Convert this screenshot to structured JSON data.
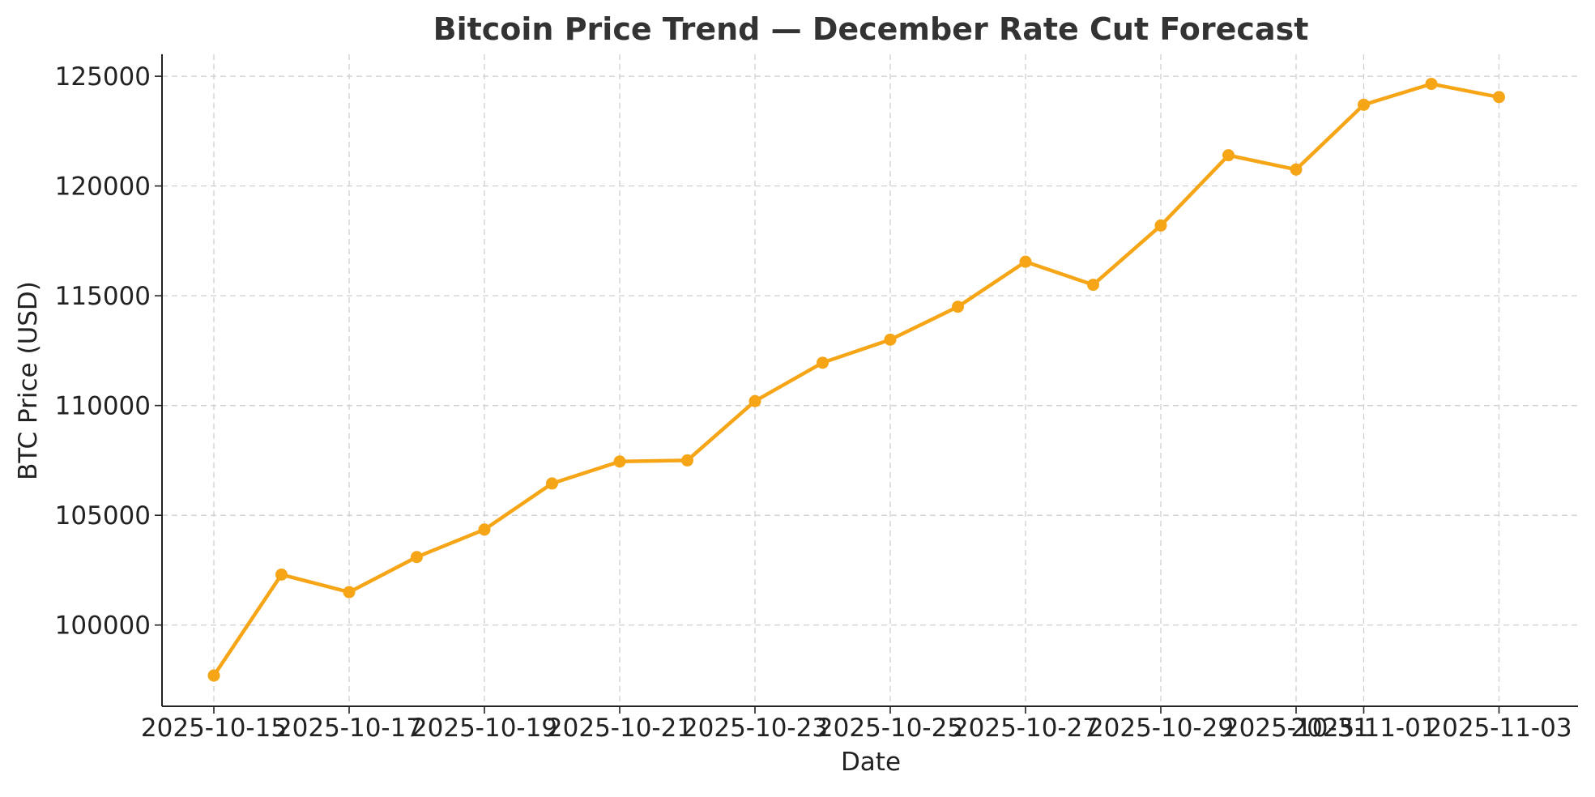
{
  "chart_data": {
    "type": "line",
    "title": "Bitcoin Price Trend — December Rate Cut Forecast",
    "xlabel": "Date",
    "ylabel": "BTC Price (USD)",
    "grid": true,
    "color": "#F5A516",
    "ylim": [
      96300,
      126000
    ],
    "yticks": [
      100000,
      105000,
      110000,
      115000,
      120000,
      125000
    ],
    "xticks": [
      "2025-10-15",
      "2025-10-17",
      "2025-10-19",
      "2025-10-21",
      "2025-10-23",
      "2025-10-25",
      "2025-10-27",
      "2025-10-29",
      "2025-10-31",
      "2025-11-01",
      "2025-11-03"
    ],
    "xtick_labels": [
      "2025-10-15",
      "2025-10-17",
      "2025-10-19",
      "2025-10-21",
      "2025-10-23",
      "2025-10-25",
      "2025-10-27",
      "2025-10-29",
      "2025-10-31",
      "2025-11-01",
      "2025-11-03"
    ],
    "series": [
      {
        "name": "BTC Price",
        "x": [
          "2025-10-15",
          "2025-10-16",
          "2025-10-17",
          "2025-10-18",
          "2025-10-19",
          "2025-10-20",
          "2025-10-21",
          "2025-10-22",
          "2025-10-23",
          "2025-10-24",
          "2025-10-25",
          "2025-10-26",
          "2025-10-27",
          "2025-10-28",
          "2025-10-29",
          "2025-10-30",
          "2025-10-31",
          "2025-11-01",
          "2025-11-02",
          "2025-11-03"
        ],
        "values": [
          97700,
          102300,
          101500,
          103100,
          104350,
          106450,
          107450,
          107500,
          110200,
          111950,
          113000,
          114500,
          116550,
          115500,
          118200,
          121400,
          120750,
          123700,
          124650,
          124050
        ]
      }
    ]
  }
}
